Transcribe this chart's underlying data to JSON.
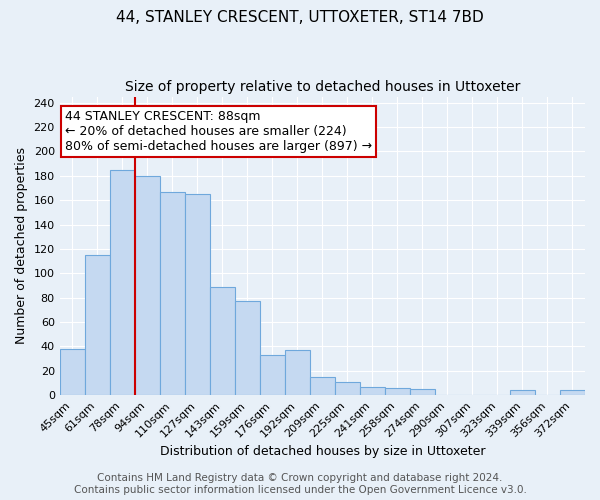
{
  "title": "44, STANLEY CRESCENT, UTTOXETER, ST14 7BD",
  "subtitle": "Size of property relative to detached houses in Uttoxeter",
  "xlabel": "Distribution of detached houses by size in Uttoxeter",
  "ylabel": "Number of detached properties",
  "bar_labels": [
    "45sqm",
    "61sqm",
    "78sqm",
    "94sqm",
    "110sqm",
    "127sqm",
    "143sqm",
    "159sqm",
    "176sqm",
    "192sqm",
    "209sqm",
    "225sqm",
    "241sqm",
    "258sqm",
    "274sqm",
    "290sqm",
    "307sqm",
    "323sqm",
    "339sqm",
    "356sqm",
    "372sqm"
  ],
  "bar_values": [
    38,
    115,
    185,
    180,
    167,
    165,
    89,
    77,
    33,
    37,
    15,
    11,
    7,
    6,
    5,
    0,
    0,
    0,
    4,
    0,
    4
  ],
  "bar_color": "#c5d9f1",
  "bar_edge_color": "#6fa8dc",
  "vline_color": "#cc0000",
  "annotation_text": "44 STANLEY CRESCENT: 88sqm\n← 20% of detached houses are smaller (224)\n80% of semi-detached houses are larger (897) →",
  "annotation_box_color": "#ffffff",
  "annotation_border_color": "#cc0000",
  "ylim": [
    0,
    245
  ],
  "yticks": [
    0,
    20,
    40,
    60,
    80,
    100,
    120,
    140,
    160,
    180,
    200,
    220,
    240
  ],
  "footer_line1": "Contains HM Land Registry data © Crown copyright and database right 2024.",
  "footer_line2": "Contains public sector information licensed under the Open Government Licence v3.0.",
  "bg_color": "#e8f0f8",
  "plot_bg_color": "#e8f0f8",
  "title_fontsize": 11,
  "subtitle_fontsize": 10,
  "axis_label_fontsize": 9,
  "tick_fontsize": 8,
  "annotation_fontsize": 9,
  "footer_fontsize": 7.5,
  "bar_width": 1.0
}
